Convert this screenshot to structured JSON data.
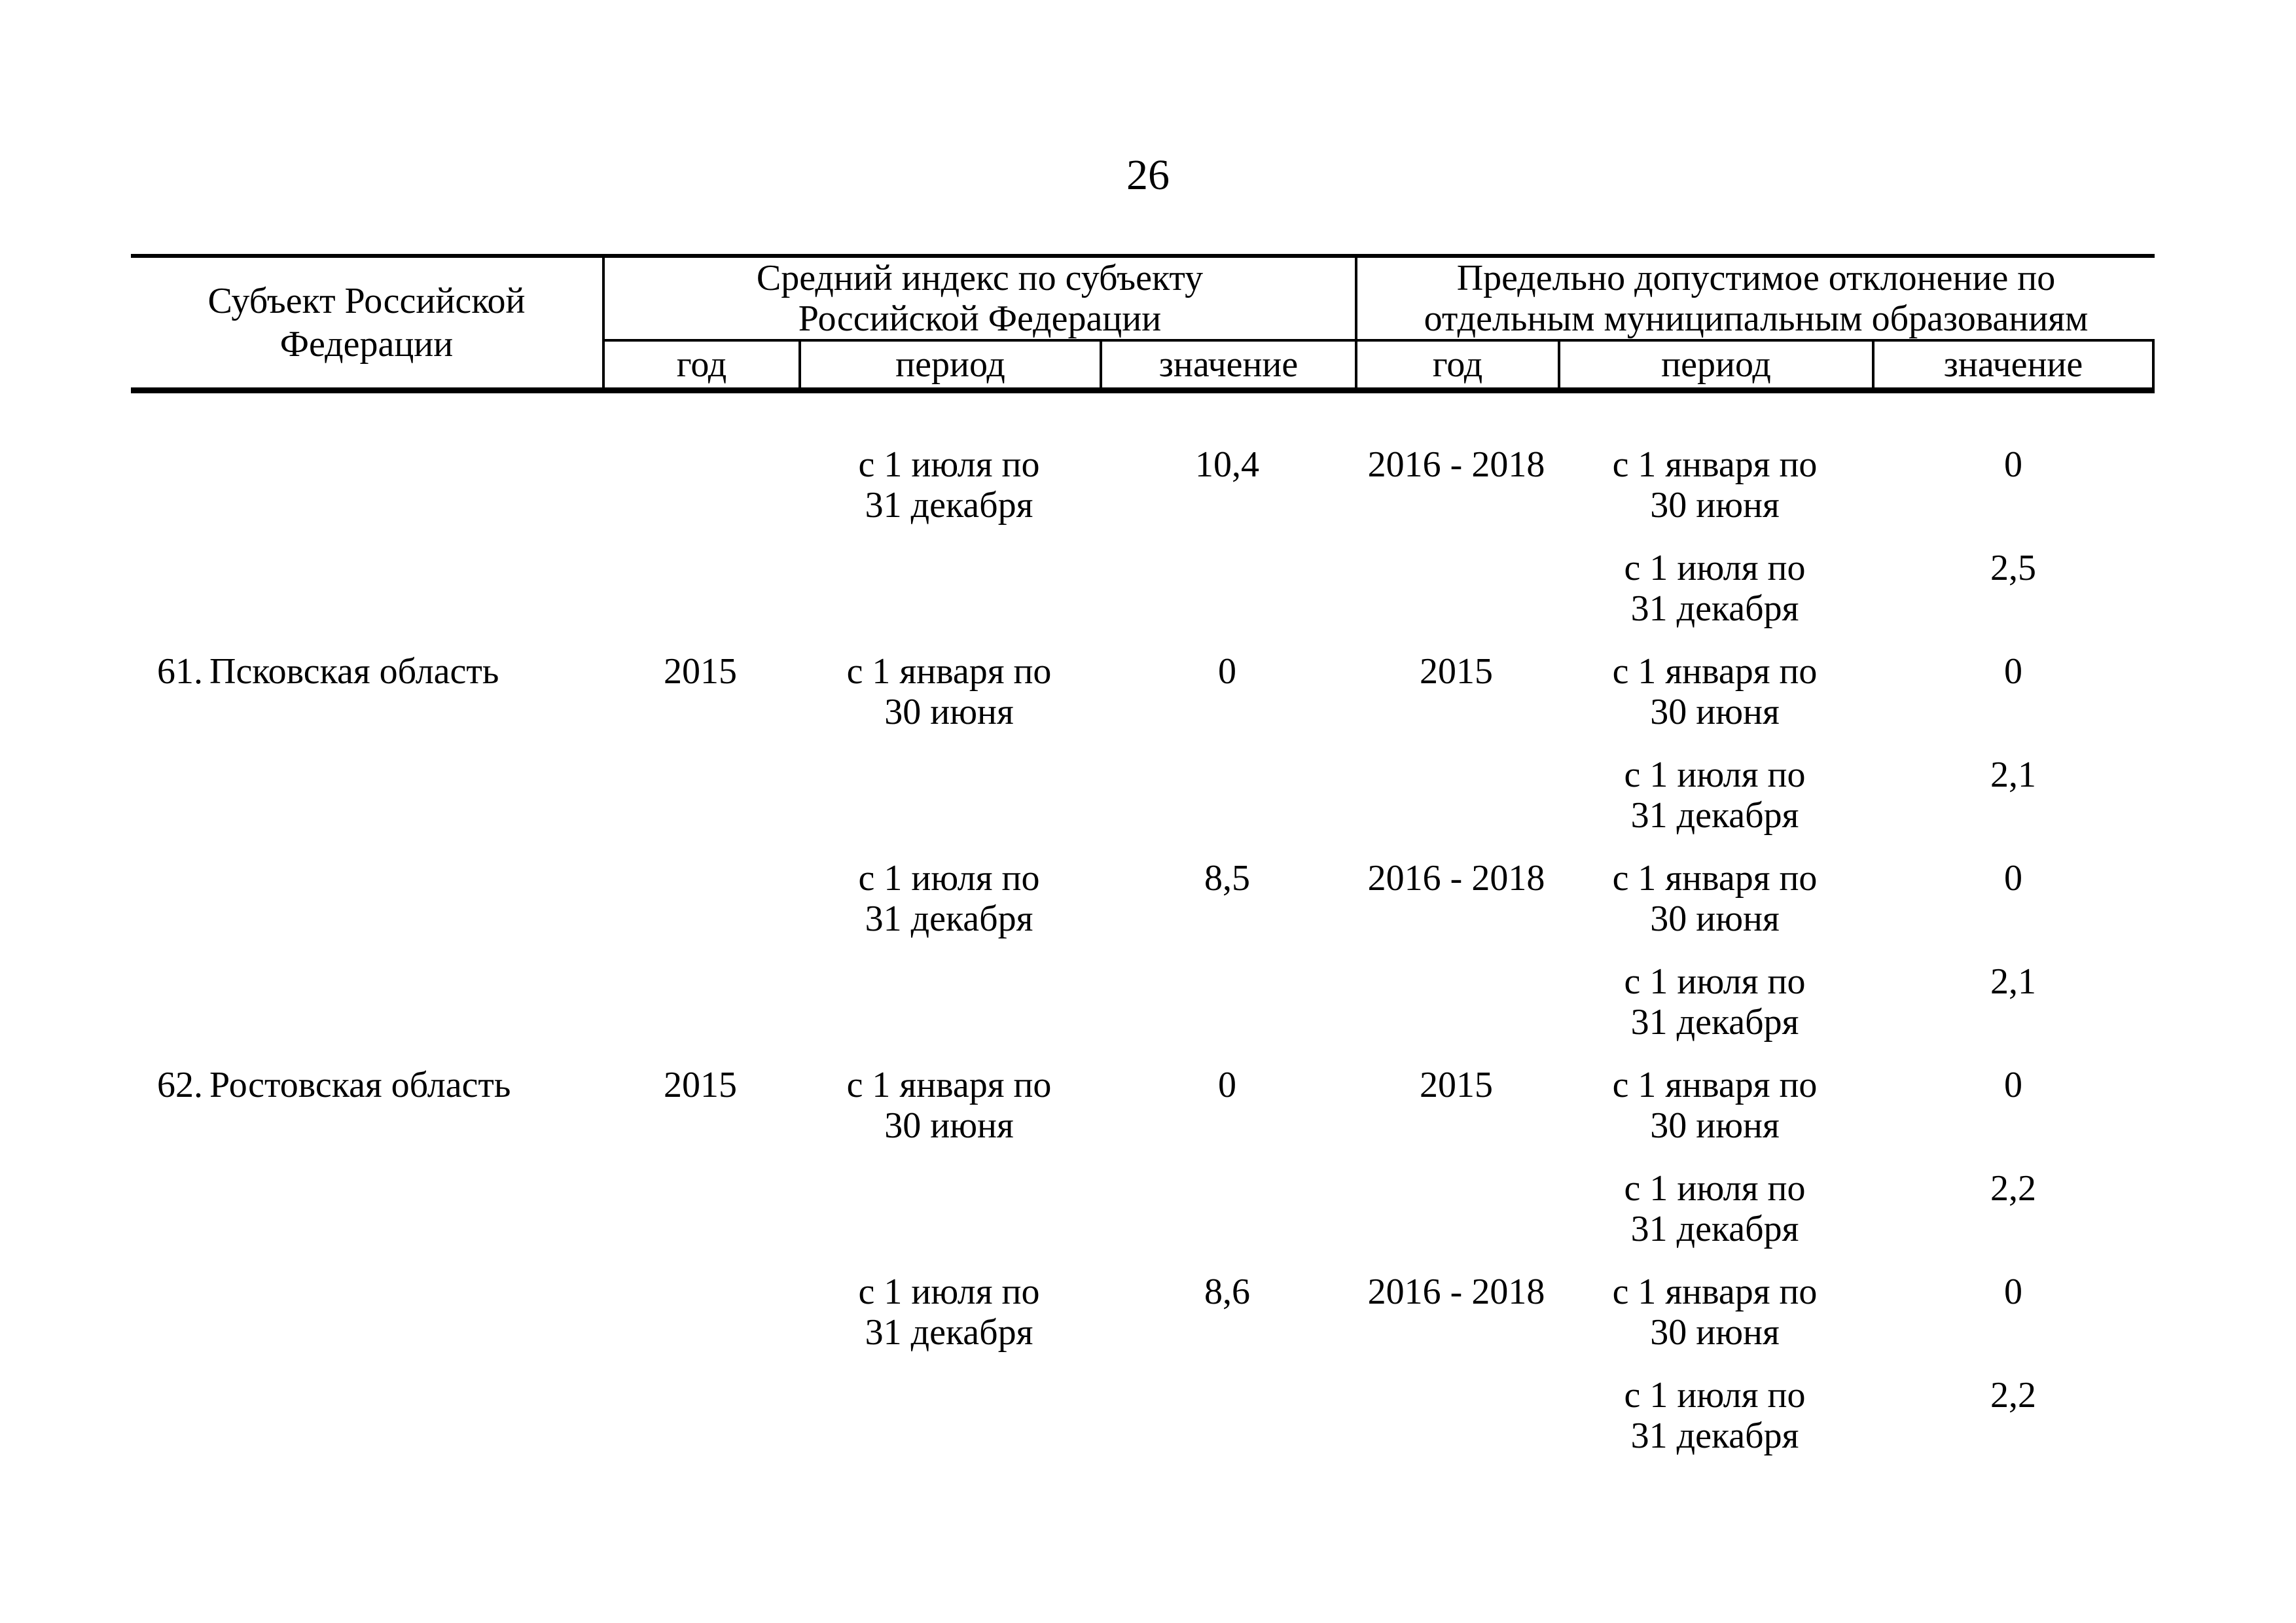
{
  "page": {
    "number": "26"
  },
  "table": {
    "headers": {
      "subject_line1": "Субъект Российской",
      "subject_line2": "Федерации",
      "group1_line1": "Средний индекс по субъекту",
      "group1_line2": "Российской Федерации",
      "group2_line1": "Предельно допустимое отклонение по",
      "group2_line2": "отдельным муниципальным образованиям",
      "sub": {
        "year": "год",
        "period": "период",
        "value": "значение"
      }
    },
    "rows": [
      {
        "num": "",
        "name": "",
        "year1": "",
        "period1": [
          "с 1 июля по",
          "31 декабря"
        ],
        "value1": "10,4",
        "year2": "2016 - 2018",
        "period2": [
          "с 1 января по",
          "30 июня"
        ],
        "value2": "0"
      },
      {
        "num": "",
        "name": "",
        "year1": "",
        "period1": [
          "",
          ""
        ],
        "value1": "",
        "year2": "",
        "period2": [
          "с 1 июля по",
          "31 декабря"
        ],
        "value2": "2,5"
      },
      {
        "num": "61.",
        "name": "Псковская область",
        "year1": "2015",
        "period1": [
          "с 1 января по",
          "30 июня"
        ],
        "value1": "0",
        "year2": "2015",
        "period2": [
          "с 1 января по",
          "30 июня"
        ],
        "value2": "0"
      },
      {
        "num": "",
        "name": "",
        "year1": "",
        "period1": [
          "",
          ""
        ],
        "value1": "",
        "year2": "",
        "period2": [
          "с 1 июля по",
          "31 декабря"
        ],
        "value2": "2,1"
      },
      {
        "num": "",
        "name": "",
        "year1": "",
        "period1": [
          "с 1 июля по",
          "31 декабря"
        ],
        "value1": "8,5",
        "year2": "2016 - 2018",
        "period2": [
          "с 1 января по",
          "30 июня"
        ],
        "value2": "0"
      },
      {
        "num": "",
        "name": "",
        "year1": "",
        "period1": [
          "",
          ""
        ],
        "value1": "",
        "year2": "",
        "period2": [
          "с 1 июля по",
          "31 декабря"
        ],
        "value2": "2,1"
      },
      {
        "num": "62.",
        "name": "Ростовская область",
        "year1": "2015",
        "period1": [
          "с 1 января по",
          "30 июня"
        ],
        "value1": "0",
        "year2": "2015",
        "period2": [
          "с 1 января по",
          "30 июня"
        ],
        "value2": "0"
      },
      {
        "num": "",
        "name": "",
        "year1": "",
        "period1": [
          "",
          ""
        ],
        "value1": "",
        "year2": "",
        "period2": [
          "с 1 июля по",
          "31 декабря"
        ],
        "value2": "2,2"
      },
      {
        "num": "",
        "name": "",
        "year1": "",
        "period1": [
          "с 1 июля по",
          "31 декабря"
        ],
        "value1": "8,6",
        "year2": "2016 - 2018",
        "period2": [
          "с 1 января по",
          "30 июня"
        ],
        "value2": "0"
      },
      {
        "num": "",
        "name": "",
        "year1": "",
        "period1": [
          "",
          ""
        ],
        "value1": "",
        "year2": "",
        "period2": [
          "с 1 июля по",
          "31 декабря"
        ],
        "value2": "2,2"
      }
    ]
  }
}
